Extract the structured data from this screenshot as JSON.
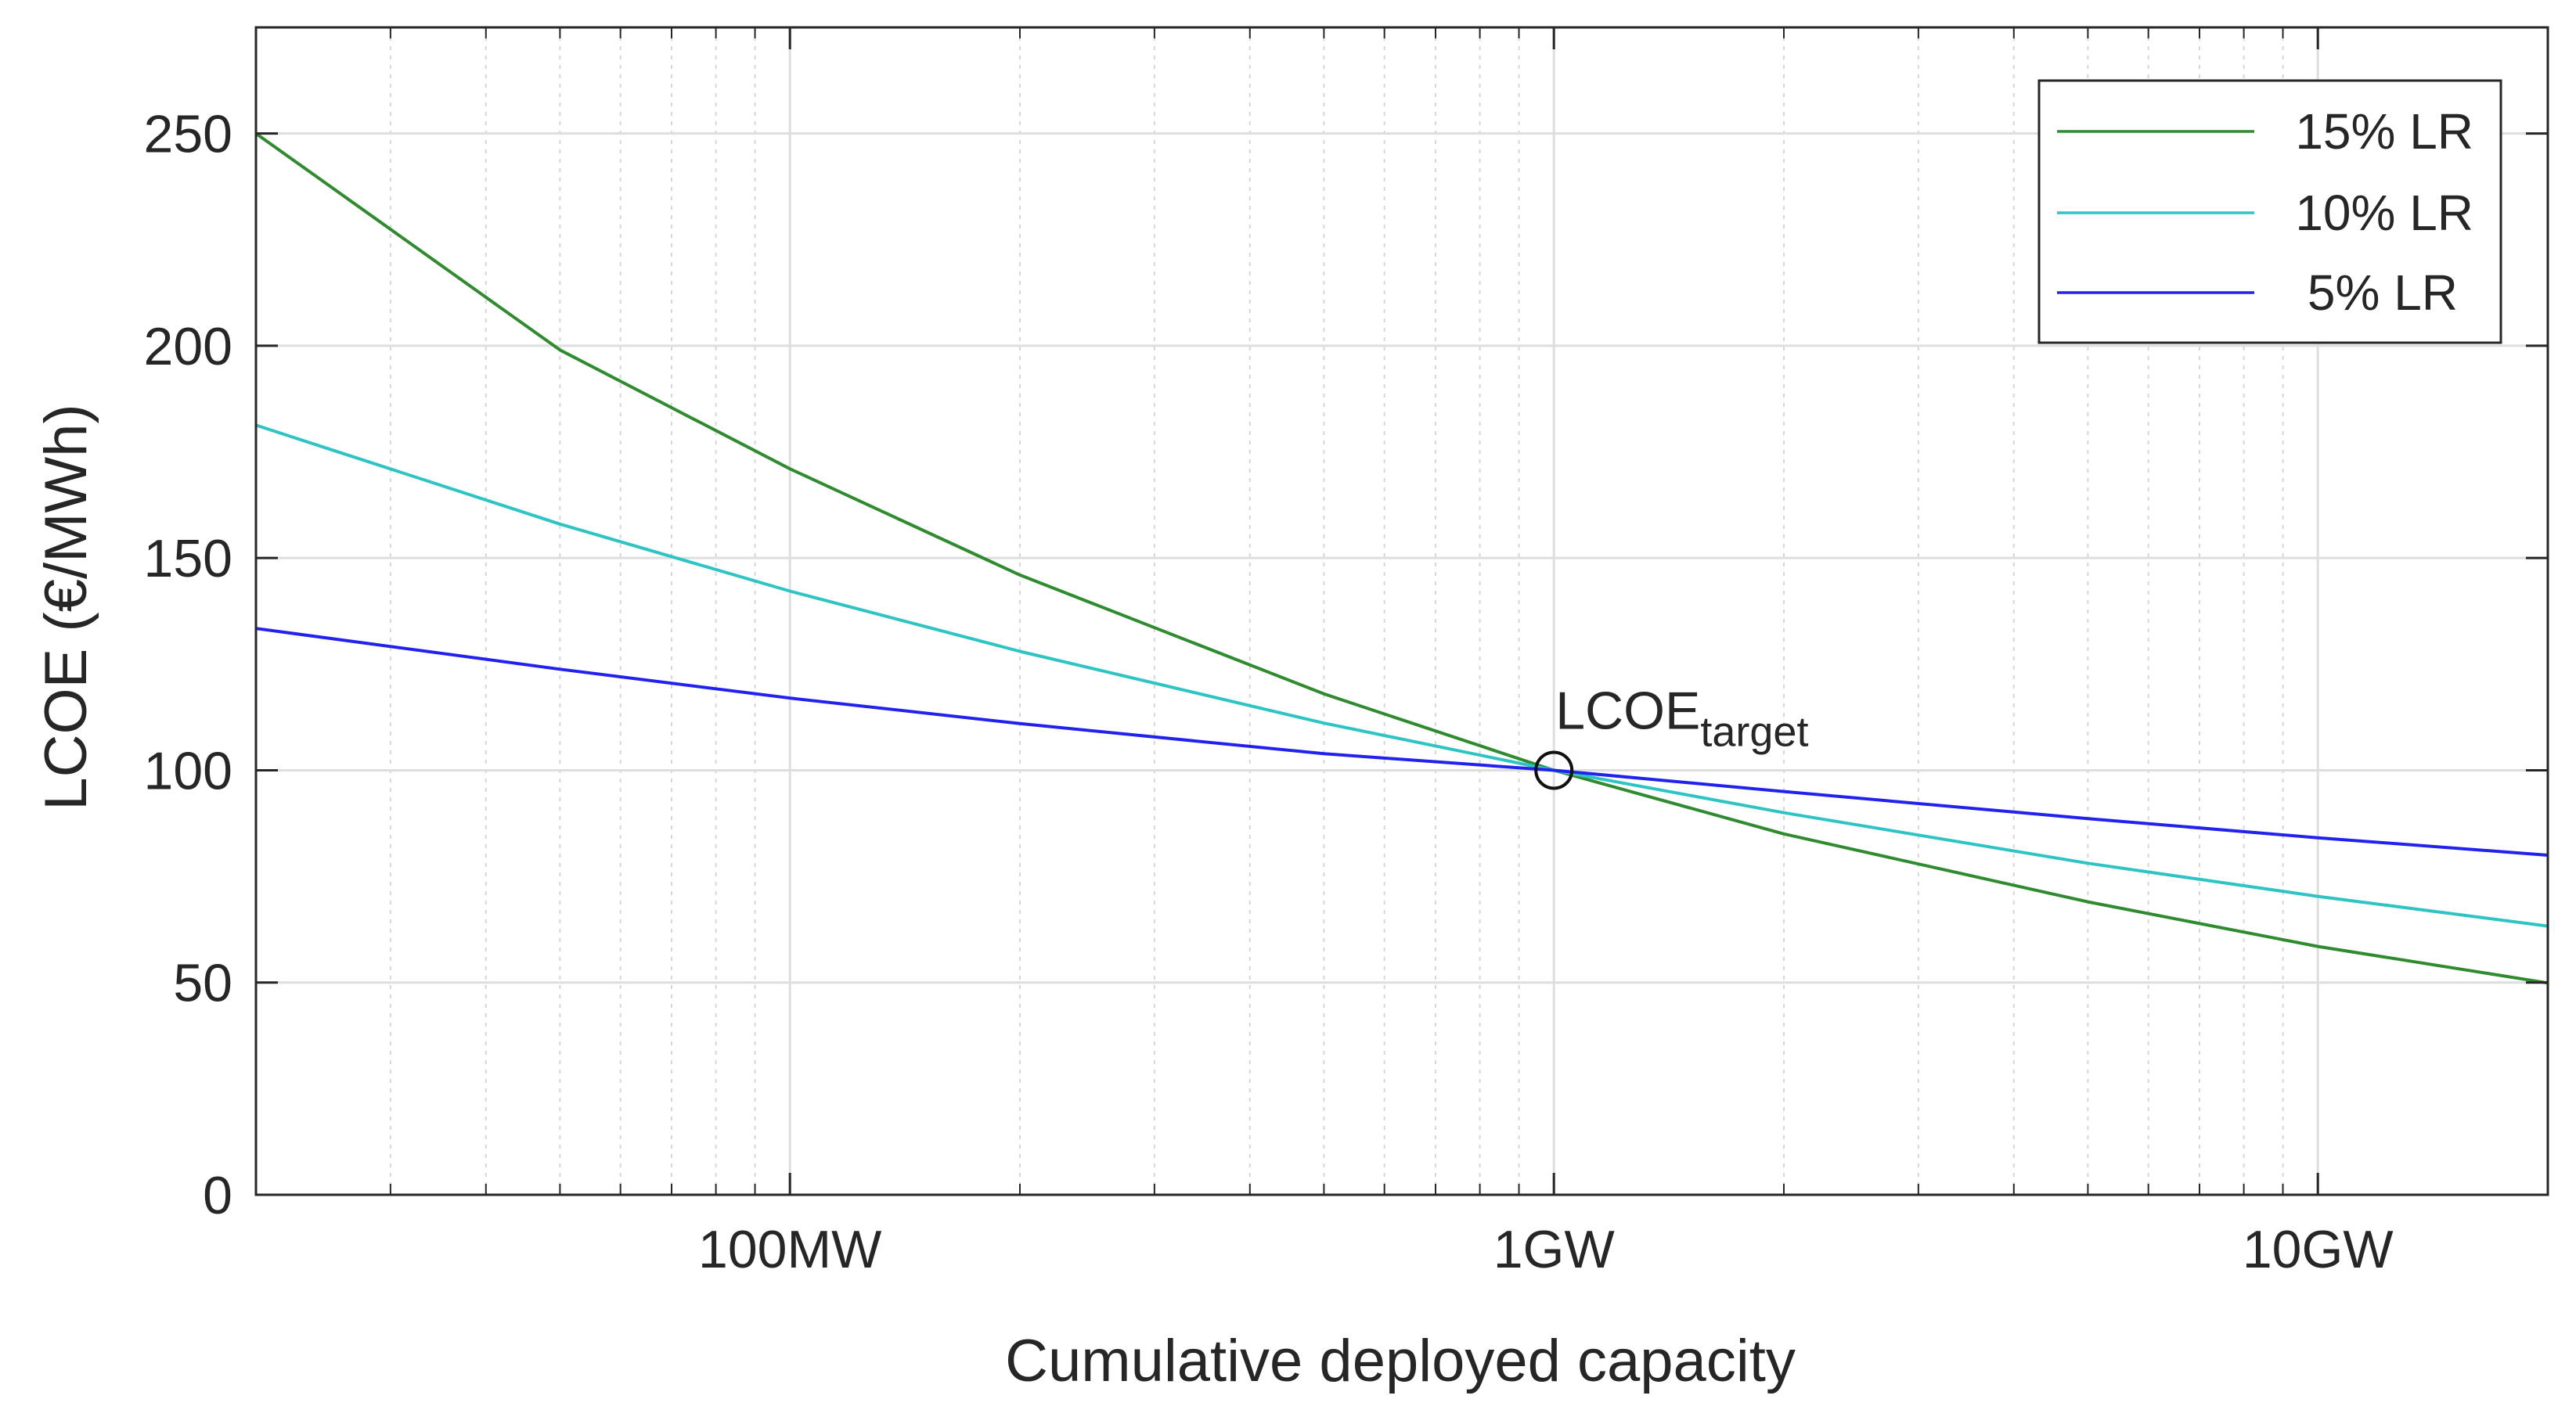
{
  "chart_data": {
    "type": "line",
    "title": "",
    "xlabel": "Cumulative deployed capacity",
    "ylabel": "LCOE (€/MWh)",
    "xscale": "log",
    "xunit": "MW",
    "xlim": [
      20,
      20000
    ],
    "ylim": [
      0,
      275
    ],
    "grid": true,
    "x_ticks": [
      {
        "value": 100,
        "label": "100MW"
      },
      {
        "value": 1000,
        "label": "1GW"
      },
      {
        "value": 10000,
        "label": "10GW"
      }
    ],
    "y_ticks": [
      {
        "value": 0,
        "label": "0"
      },
      {
        "value": 50,
        "label": "50"
      },
      {
        "value": 100,
        "label": "100"
      },
      {
        "value": 150,
        "label": "150"
      },
      {
        "value": 200,
        "label": "200"
      },
      {
        "value": 250,
        "label": "250"
      }
    ],
    "x": [
      20,
      50,
      100,
      200,
      500,
      1000,
      2000,
      5000,
      10000,
      20000
    ],
    "series": [
      {
        "name": "15% LR",
        "color": "#2e8b2e",
        "values": [
          250,
          199,
          171,
          146,
          118,
          100,
          85,
          69,
          58.5,
          49.9
        ]
      },
      {
        "name": "10% LR",
        "color": "#2ec4c4",
        "values": [
          181.3,
          158,
          142.2,
          128,
          111.1,
          100,
          90,
          78.1,
          70.3,
          63.3
        ]
      },
      {
        "name": "5% LR",
        "color": "#2222ee",
        "values": [
          133.4,
          123.8,
          117,
          111,
          103.9,
          100,
          95,
          88.6,
          84.1,
          80
        ]
      }
    ],
    "legend": {
      "position": "top-right",
      "entries": [
        "15% LR",
        "10% LR",
        "5% LR"
      ]
    },
    "annotation": {
      "text": "LCOE",
      "subscript": "target",
      "x": 1000,
      "y": 100,
      "marker": "circle"
    }
  }
}
